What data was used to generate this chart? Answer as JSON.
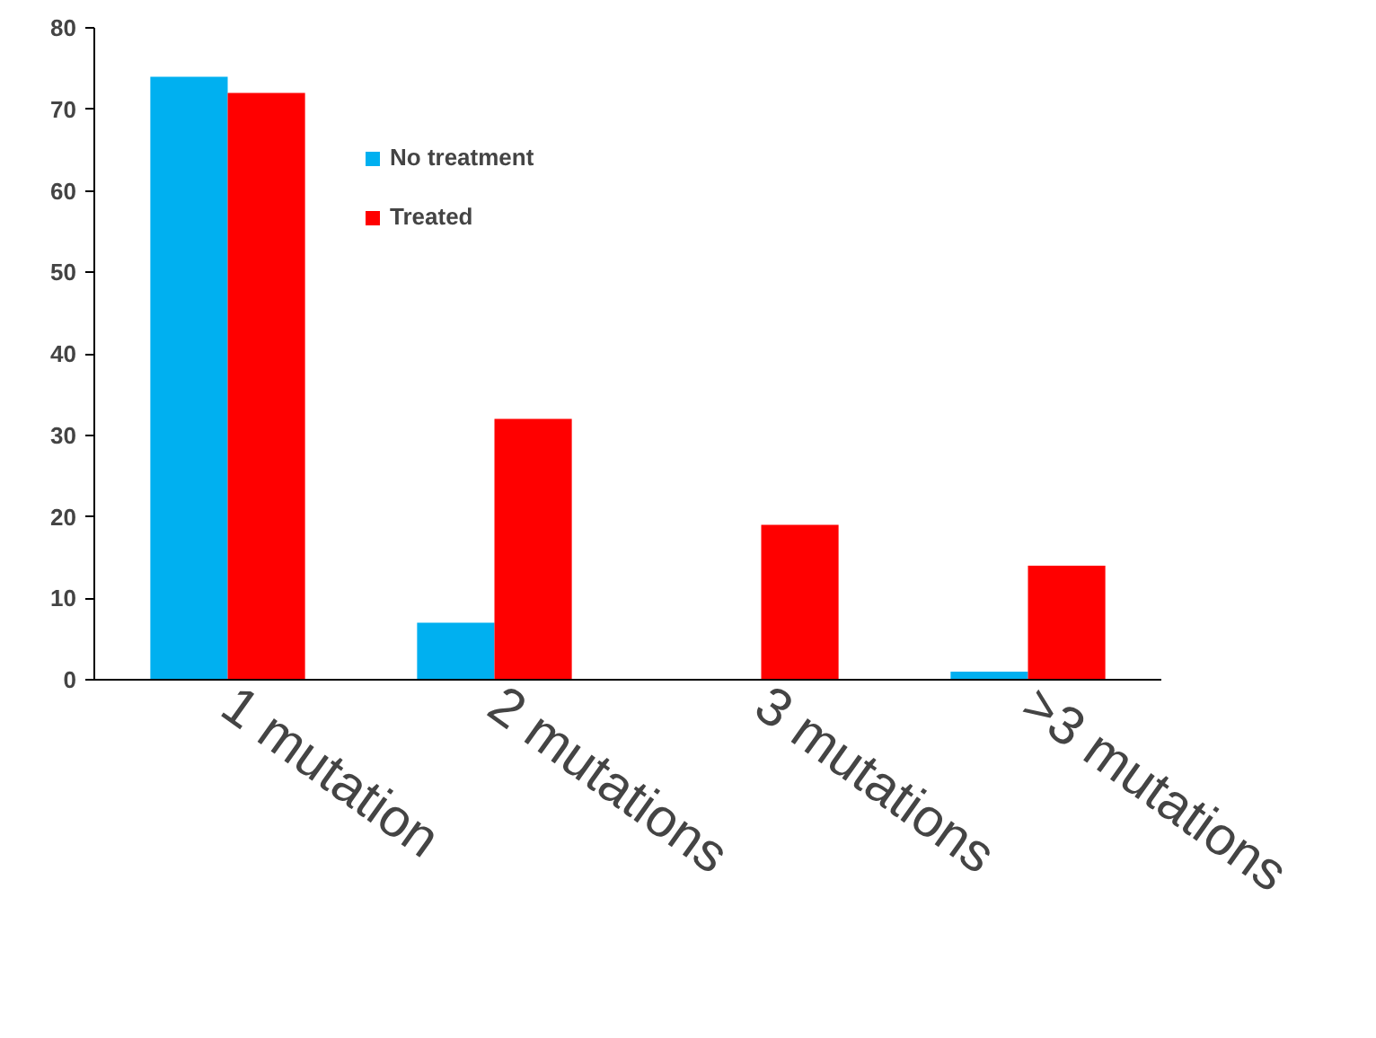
{
  "chart_data": {
    "type": "bar",
    "categories": [
      "1 mutation",
      "2 mutations",
      "3 mutations",
      ">3 mutations"
    ],
    "series": [
      {
        "name": "No treatment",
        "color": "#00b0f0",
        "values": [
          74,
          7,
          0,
          1
        ]
      },
      {
        "name": "Treated",
        "color": "#ff0000",
        "values": [
          72,
          32,
          19,
          14
        ]
      }
    ],
    "ylim": [
      0,
      80
    ],
    "yticks": [
      0,
      10,
      20,
      30,
      40,
      50,
      60,
      70,
      80
    ],
    "grid": false,
    "legend": "top left"
  }
}
